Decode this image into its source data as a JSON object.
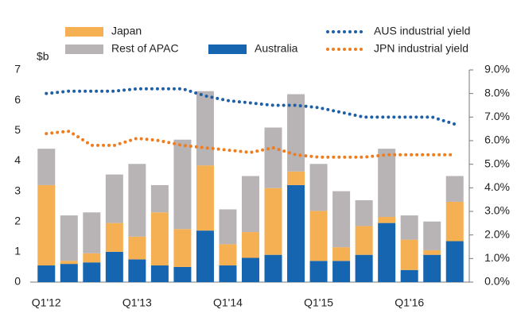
{
  "chart_data": {
    "type": "bar",
    "y_label": "$b",
    "categories": [
      "Q1'12",
      null,
      null,
      null,
      "Q1'13",
      null,
      null,
      null,
      "Q1'14",
      null,
      null,
      null,
      "Q1'15",
      null,
      null,
      null,
      "Q1'16",
      null,
      null
    ],
    "series": [
      {
        "name": "Australia",
        "color": "#1565b0",
        "values": [
          0.55,
          0.6,
          0.65,
          1.0,
          0.75,
          0.55,
          0.5,
          1.7,
          0.55,
          0.8,
          0.9,
          3.2,
          0.7,
          0.7,
          0.9,
          1.95,
          0.4,
          0.9,
          1.35
        ]
      },
      {
        "name": "Japan",
        "color": "#f5b053",
        "values": [
          2.65,
          0.1,
          0.3,
          0.95,
          0.75,
          1.75,
          1.25,
          2.15,
          0.7,
          0.85,
          2.2,
          0.45,
          1.65,
          0.45,
          0.95,
          0.2,
          1.0,
          0.15,
          1.3
        ]
      },
      {
        "name": "Rest of APAC",
        "color": "#b8b4b5",
        "values": [
          1.2,
          1.5,
          1.35,
          1.6,
          2.4,
          0.9,
          2.95,
          2.45,
          1.15,
          1.85,
          2.0,
          2.55,
          1.55,
          1.85,
          0.85,
          2.25,
          0.8,
          0.95,
          0.85
        ]
      },
      {
        "name": "AUS industrial yield",
        "color": "#1e5fa8",
        "axis": "y2",
        "type": "line",
        "values": [
          8.0,
          8.1,
          8.1,
          8.1,
          8.2,
          8.2,
          8.2,
          7.9,
          7.7,
          7.6,
          7.5,
          7.5,
          7.4,
          7.2,
          7.0,
          7.0,
          7.0,
          7.0,
          6.7
        ]
      },
      {
        "name": "JPN industrial yield",
        "color": "#f07c1c",
        "axis": "y2",
        "type": "line",
        "values": [
          6.3,
          6.4,
          5.8,
          5.8,
          6.1,
          6.0,
          5.8,
          5.7,
          5.6,
          5.5,
          5.7,
          5.4,
          5.3,
          5.3,
          5.3,
          5.4,
          5.4,
          5.4,
          5.4
        ]
      }
    ],
    "stacked": true,
    "ylim": [
      0,
      7
    ],
    "yticks": [
      0,
      1,
      2,
      3,
      4,
      5,
      6,
      7
    ],
    "y2lim": [
      0,
      9
    ],
    "y2ticks": [
      {
        "value": 0,
        "label": "0.0%"
      },
      {
        "value": 1,
        "label": "1.0%"
      },
      {
        "value": 2,
        "label": "2.0%"
      },
      {
        "value": 3,
        "label": "3.0%"
      },
      {
        "value": 4,
        "label": "4.0%"
      },
      {
        "value": 5,
        "label": "5.0%"
      },
      {
        "value": 6,
        "label": "6.0%"
      },
      {
        "value": 7,
        "label": "7.0%"
      },
      {
        "value": 8,
        "label": "8.0%"
      },
      {
        "value": 9,
        "label": "9.0%"
      }
    ],
    "grid": false,
    "legend": "top"
  }
}
